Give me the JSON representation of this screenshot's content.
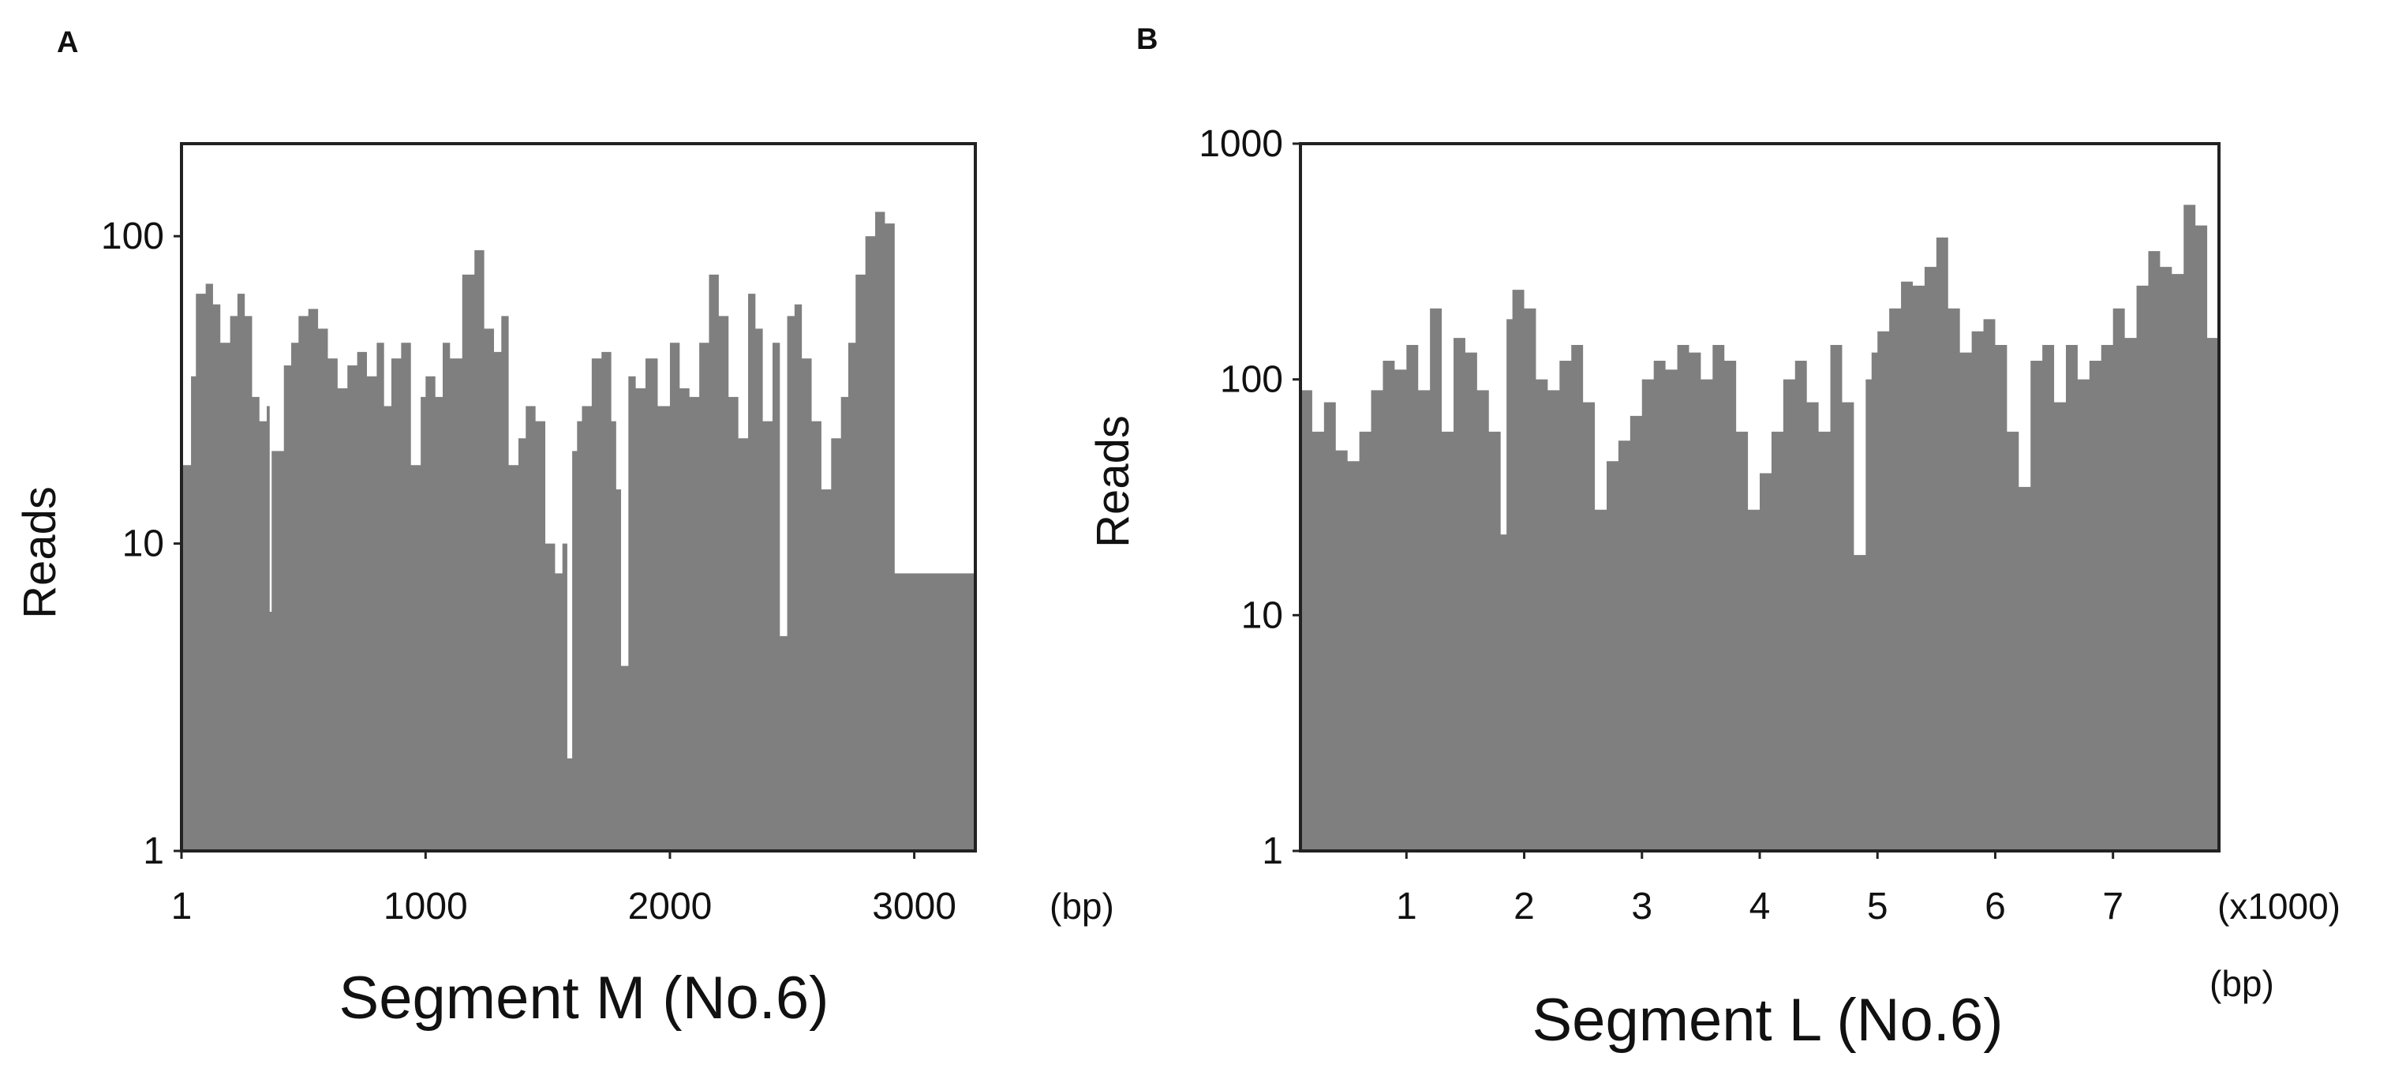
{
  "chart_data": [
    {
      "panel": "A",
      "type": "area",
      "xlabel": "Segment M (No.6)",
      "ylabel": "Reads",
      "x_unit": "(bp)",
      "y_scale": "log",
      "ylim": [
        1,
        200
      ],
      "xlim": [
        1,
        3250
      ],
      "y_ticks": [
        "1",
        "10",
        "100"
      ],
      "x_ticks": [
        "1",
        "1000",
        "2000",
        "3000"
      ],
      "series": [
        {
          "x": [
            1,
            40,
            60,
            100,
            130,
            160,
            200,
            230,
            260,
            290,
            320,
            350,
            362,
            370,
            385,
            420,
            450,
            480,
            520,
            560,
            600,
            640,
            680,
            720,
            760,
            800,
            830,
            860,
            900,
            940,
            980,
            1000,
            1040,
            1070,
            1100,
            1150,
            1200,
            1240,
            1280,
            1310,
            1340,
            1380,
            1410,
            1450,
            1490,
            1530,
            1560,
            1580,
            1600,
            1620,
            1640,
            1680,
            1720,
            1760,
            1780,
            1800,
            1830,
            1860,
            1900,
            1950,
            2000,
            2040,
            2080,
            2120,
            2160,
            2200,
            2240,
            2280,
            2320,
            2350,
            2380,
            2420,
            2450,
            2480,
            2510,
            2540,
            2580,
            2620,
            2660,
            2700,
            2730,
            2760,
            2800,
            2840,
            2880,
            2920,
            2960,
            3000,
            3040,
            3080,
            3120,
            3160,
            3190,
            3220,
            3250
          ],
          "y": [
            18,
            35,
            65,
            70,
            60,
            45,
            55,
            65,
            55,
            30,
            25,
            28,
            6,
            20,
            20,
            38,
            45,
            55,
            58,
            50,
            40,
            32,
            38,
            42,
            35,
            45,
            28,
            40,
            45,
            18,
            30,
            35,
            30,
            45,
            40,
            75,
            90,
            50,
            42,
            55,
            18,
            22,
            28,
            25,
            10,
            8,
            10,
            2,
            20,
            25,
            28,
            40,
            42,
            25,
            15,
            4,
            35,
            32,
            40,
            28,
            45,
            32,
            30,
            45,
            75,
            55,
            30,
            22,
            65,
            50,
            25,
            45,
            5,
            55,
            60,
            40,
            25,
            15,
            22,
            30,
            45,
            75,
            100,
            120,
            110,
            8,
            8,
            8,
            8,
            8,
            8,
            8,
            8,
            8,
            8
          ]
        }
      ]
    },
    {
      "panel": "B",
      "type": "area",
      "xlabel": "Segment L (No.6)",
      "ylabel": "Reads",
      "x_unit": "(x1000)\n(bp)",
      "y_scale": "log",
      "ylim": [
        1,
        1000
      ],
      "xlim": [
        0.1,
        7.9
      ],
      "y_ticks": [
        "1",
        "10",
        "100",
        "1000"
      ],
      "x_ticks": [
        "1",
        "2",
        "3",
        "4",
        "5",
        "6",
        "7"
      ],
      "series": [
        {
          "x": [
            0.1,
            0.2,
            0.3,
            0.4,
            0.5,
            0.6,
            0.7,
            0.8,
            0.9,
            1.0,
            1.1,
            1.2,
            1.3,
            1.4,
            1.5,
            1.6,
            1.7,
            1.8,
            1.85,
            1.9,
            2.0,
            2.1,
            2.2,
            2.3,
            2.4,
            2.5,
            2.6,
            2.7,
            2.8,
            2.9,
            3.0,
            3.1,
            3.2,
            3.3,
            3.4,
            3.5,
            3.6,
            3.7,
            3.8,
            3.9,
            4.0,
            4.1,
            4.2,
            4.3,
            4.4,
            4.5,
            4.6,
            4.7,
            4.8,
            4.9,
            4.95,
            5.0,
            5.1,
            5.2,
            5.3,
            5.4,
            5.5,
            5.6,
            5.7,
            5.8,
            5.9,
            6.0,
            6.1,
            6.2,
            6.3,
            6.4,
            6.5,
            6.6,
            6.7,
            6.8,
            6.9,
            7.0,
            7.1,
            7.2,
            7.3,
            7.4,
            7.5,
            7.6,
            7.7,
            7.8,
            7.9
          ],
          "y": [
            90,
            60,
            80,
            50,
            45,
            60,
            90,
            120,
            110,
            140,
            90,
            200,
            60,
            150,
            130,
            90,
            60,
            22,
            180,
            240,
            200,
            100,
            90,
            120,
            140,
            80,
            28,
            45,
            55,
            70,
            100,
            120,
            110,
            140,
            130,
            100,
            140,
            120,
            60,
            28,
            40,
            60,
            100,
            120,
            80,
            60,
            140,
            80,
            18,
            100,
            130,
            160,
            200,
            260,
            250,
            300,
            400,
            200,
            130,
            160,
            180,
            140,
            60,
            35,
            120,
            140,
            80,
            140,
            100,
            120,
            140,
            200,
            150,
            250,
            350,
            300,
            280,
            550,
            450,
            150,
            25
          ]
        }
      ]
    }
  ]
}
